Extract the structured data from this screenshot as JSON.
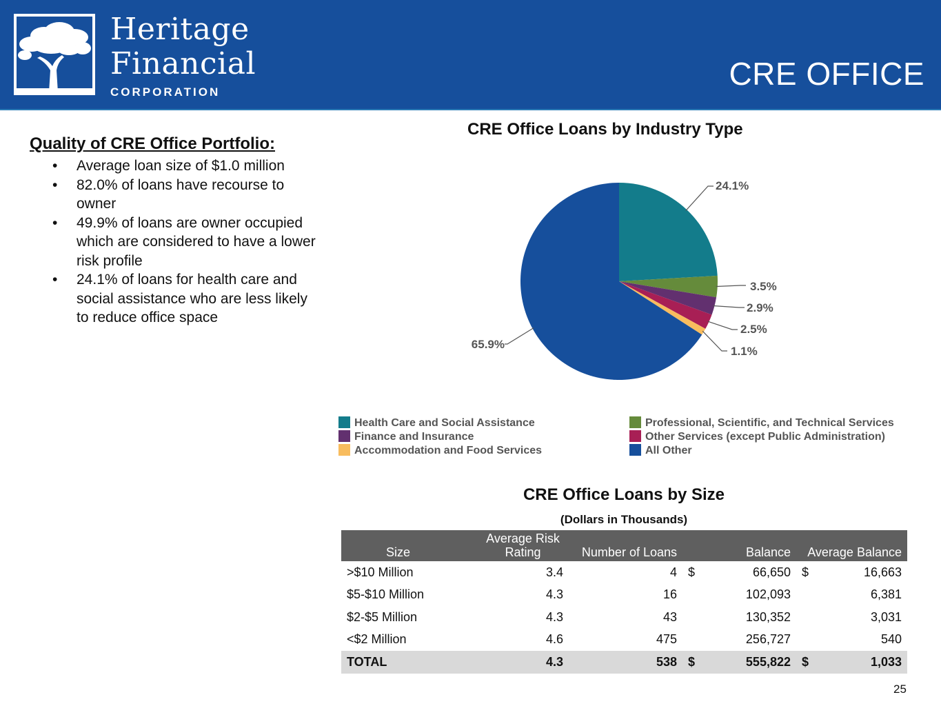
{
  "header": {
    "brand": {
      "line1": "Heritage",
      "line2": "Financial",
      "line3": "CORPORATION"
    },
    "title": "CRE OFFICE",
    "background_color": "#164f9c",
    "logo_icon": "tree-icon"
  },
  "quality": {
    "title": "Quality of CRE Office Portfolio:",
    "bullets": [
      "Average loan size of $1.0 million",
      "82.0% of loans have recourse to owner",
      "49.9% of loans are owner occupied which are considered to have a lower risk profile",
      "24.1% of loans for health care and social assistance who are less likely to reduce office space"
    ]
  },
  "chart_data": [
    {
      "type": "pie",
      "title": "CRE Office Loans by Industry Type",
      "categories": [
        "Health Care and Social Assistance",
        "Professional, Scientific, and Technical Services",
        "Finance and Insurance",
        "Other Services (except Public Administration)",
        "Accommodation and Food Services",
        "All Other"
      ],
      "values": [
        24.1,
        3.5,
        2.9,
        2.5,
        1.1,
        65.9
      ],
      "labels": [
        "24.1%",
        "3.5%",
        "2.9%",
        "2.5%",
        "1.1%",
        "65.9%"
      ],
      "colors": [
        "#137c8b",
        "#658b3b",
        "#62306f",
        "#a81f55",
        "#f8bc5e",
        "#164f9c"
      ],
      "legend_position": "bottom"
    },
    {
      "type": "table",
      "title": "CRE Office Loans by Size",
      "subtitle": "(Dollars in Thousands)",
      "columns": [
        "Size",
        "Average Risk Rating",
        "Number of Loans",
        "Balance",
        "Average Balance"
      ],
      "rows": [
        {
          "size": ">$10 Million",
          "risk": "3.4",
          "count": "4",
          "bal_prefix": "$",
          "balance": "66,650",
          "avg_prefix": "$",
          "avg": "16,663"
        },
        {
          "size": "$5-$10 Million",
          "risk": "4.3",
          "count": "16",
          "bal_prefix": "",
          "balance": "102,093",
          "avg_prefix": "",
          "avg": "6,381"
        },
        {
          "size": "$2-$5 Million",
          "risk": "4.3",
          "count": "43",
          "bal_prefix": "",
          "balance": "130,352",
          "avg_prefix": "",
          "avg": "3,031"
        },
        {
          "size": "<$2 Million",
          "risk": "4.6",
          "count": "475",
          "bal_prefix": "",
          "balance": "256,727",
          "avg_prefix": "",
          "avg": "540"
        }
      ],
      "total": {
        "size": "TOTAL",
        "risk": "4.3",
        "count": "538",
        "bal_prefix": "$",
        "balance": "555,822",
        "avg_prefix": "$",
        "avg": "1,033"
      }
    }
  ],
  "footer": {
    "page_number": "25"
  }
}
